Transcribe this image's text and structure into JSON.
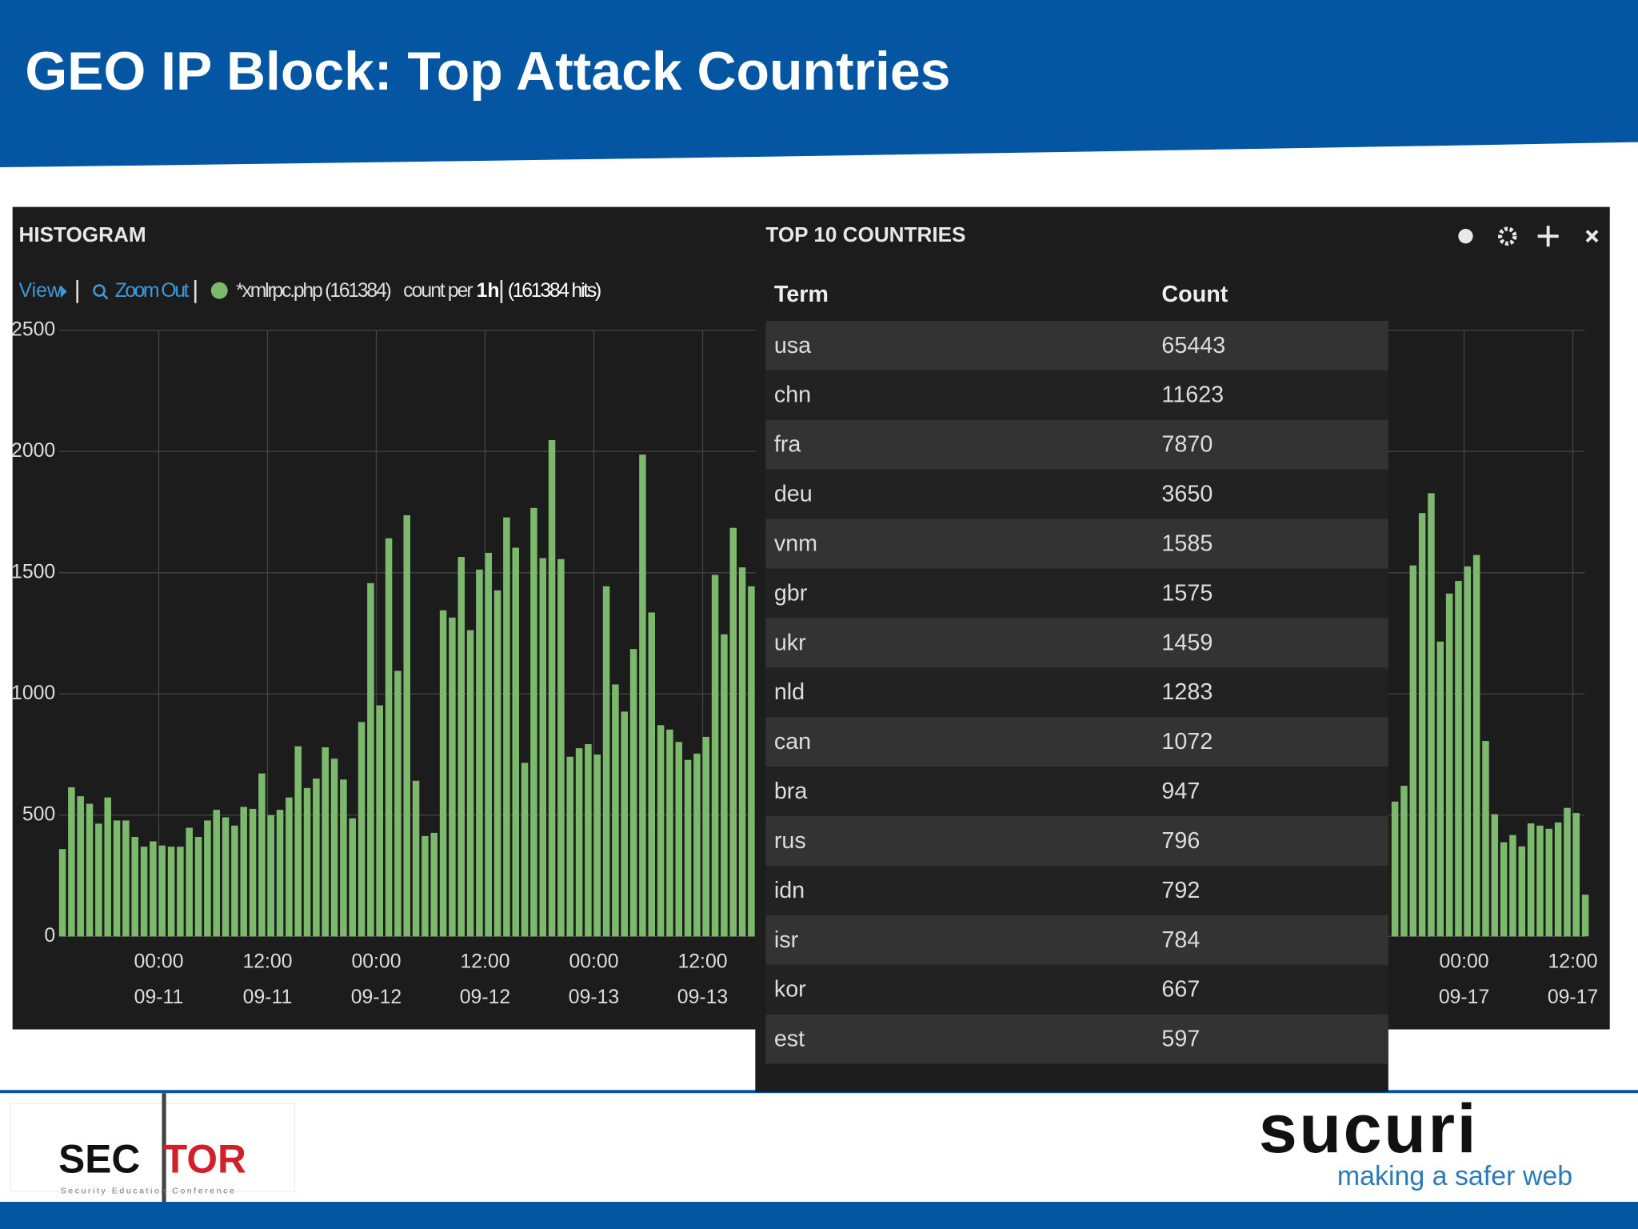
{
  "slide": {
    "title": "GEO IP Block: Top Attack Countries"
  },
  "footer": {
    "left_logo": [
      "SEC",
      "TOR"
    ],
    "left_tagline": "Security Education Conference",
    "right_logo": "sucuri",
    "right_tagline": "making a safer web"
  },
  "chart_data": {
    "type": "bar",
    "title": "HISTOGRAM",
    "toolbar": {
      "view": "View",
      "zoom": "Zoom Out",
      "count_per": "count per",
      "interval": "1h",
      "hits": "(161384 hits)"
    },
    "x": [
      "09-10 13:00",
      "09-10 14:00",
      "09-10 15:00",
      "09-10 16:00",
      "09-10 17:00",
      "09-10 18:00",
      "09-10 19:00",
      "09-10 20:00",
      "09-10 21:00",
      "09-10 22:00",
      "09-10 23:00",
      "09-11 00:00",
      "09-11 01:00",
      "09-11 02:00",
      "09-11 03:00",
      "09-11 04:00",
      "09-11 05:00",
      "09-11 06:00",
      "09-11 07:00",
      "09-11 08:00",
      "09-11 09:00",
      "09-11 10:00",
      "09-11 11:00",
      "09-11 12:00",
      "09-11 13:00",
      "09-11 14:00",
      "09-11 15:00",
      "09-11 16:00",
      "09-11 17:00",
      "09-11 18:00",
      "09-11 19:00",
      "09-11 20:00",
      "09-11 21:00",
      "09-11 22:00",
      "09-11 23:00",
      "09-12 00:00",
      "09-12 01:00",
      "09-12 02:00",
      "09-12 03:00",
      "09-12 04:00",
      "09-12 05:00",
      "09-12 06:00",
      "09-12 07:00",
      "09-12 08:00",
      "09-12 09:00",
      "09-12 10:00",
      "09-12 11:00",
      "09-12 12:00",
      "09-12 13:00",
      "09-12 14:00",
      "09-12 15:00",
      "09-12 16:00",
      "09-12 17:00",
      "09-12 18:00",
      "09-12 19:00",
      "09-12 20:00",
      "09-12 21:00",
      "09-12 22:00",
      "09-12 23:00",
      "09-13 00:00",
      "09-13 01:00",
      "09-13 02:00",
      "09-13 03:00",
      "09-13 04:00",
      "09-13 05:00",
      "09-13 06:00",
      "09-13 07:00",
      "09-13 08:00",
      "09-13 09:00",
      "09-13 10:00",
      "09-13 11:00",
      "09-13 12:00",
      "09-13 13:00",
      "09-13 14:00",
      "09-13 15:00",
      "09-13 16:00",
      "09-13 17:00",
      "09-16 16:00",
      "09-16 17:00",
      "09-16 18:00",
      "09-16 19:00",
      "09-16 20:00",
      "09-16 21:00",
      "09-16 22:00",
      "09-16 23:00",
      "09-17 00:00",
      "09-17 01:00",
      "09-17 02:00",
      "09-17 03:00",
      "09-17 04:00",
      "09-17 05:00",
      "09-17 06:00",
      "09-17 07:00",
      "09-17 08:00",
      "09-17 09:00",
      "09-17 10:00",
      "09-17 11:00",
      "09-17 12:00",
      "09-17 13:00"
    ],
    "series": [
      {
        "name": "*xmlrpc.php (161384)",
        "color": "#7db96c",
        "values": [
          360,
          615,
          578,
          547,
          465,
          573,
          478,
          478,
          410,
          370,
          392,
          375,
          370,
          370,
          448,
          410,
          478,
          522,
          491,
          457,
          534,
          526,
          672,
          500,
          522,
          573,
          784,
          612,
          651,
          780,
          733,
          647,
          487,
          884,
          1457,
          953,
          1642,
          1095,
          1737,
          642,
          414,
          427,
          1345,
          1315,
          1565,
          1263,
          1513,
          1582,
          1427,
          1728,
          1603,
          716,
          1767,
          1560,
          2047,
          1556,
          741,
          776,
          793,
          750,
          1444,
          1039,
          927,
          1185,
          1987,
          1336,
          871,
          853,
          802,
          728,
          754,
          823,
          1491,
          1246,
          1685,
          1522,
          1444,
          556,
          621,
          1530,
          1746,
          1828,
          1216,
          1414,
          1466,
          1526,
          1573,
          806,
          504,
          388,
          418,
          371,
          466,
          457,
          444,
          470,
          530,
          509,
          172
        ]
      }
    ],
    "xlim": [
      "09-10 13:00",
      "09-17 14:00"
    ],
    "xticks": [
      {
        "value": "09-11 00:00",
        "label": [
          "00:00",
          "09-11"
        ]
      },
      {
        "value": "09-11 12:00",
        "label": [
          "12:00",
          "09-11"
        ]
      },
      {
        "value": "09-12 00:00",
        "label": [
          "00:00",
          "09-12"
        ]
      },
      {
        "value": "09-12 12:00",
        "label": [
          "12:00",
          "09-12"
        ]
      },
      {
        "value": "09-13 00:00",
        "label": [
          "00:00",
          "09-13"
        ]
      },
      {
        "value": "09-13 12:00",
        "label": [
          "12:00",
          "09-13"
        ]
      },
      {
        "value": "09-17 00:00",
        "label": [
          "00:00",
          "09-17"
        ]
      },
      {
        "value": "09-17 12:00",
        "label": [
          "12:00",
          "09-17"
        ]
      }
    ],
    "ylim": [
      0,
      2500
    ],
    "yticks": [
      0,
      500,
      1000,
      1500,
      2000,
      2500
    ],
    "grid": true
  },
  "table": {
    "title": "TOP 10 COUNTRIES",
    "columns": [
      "Term",
      "Count"
    ],
    "rows": [
      [
        "usa",
        65443
      ],
      [
        "chn",
        11623
      ],
      [
        "fra",
        7870
      ],
      [
        "deu",
        3650
      ],
      [
        "vnm",
        1585
      ],
      [
        "gbr",
        1575
      ],
      [
        "ukr",
        1459
      ],
      [
        "nld",
        1283
      ],
      [
        "can",
        1072
      ],
      [
        "bra",
        947
      ],
      [
        "rus",
        796
      ],
      [
        "idn",
        792
      ],
      [
        "isr",
        784
      ],
      [
        "kor",
        667
      ],
      [
        "est",
        597
      ]
    ]
  }
}
